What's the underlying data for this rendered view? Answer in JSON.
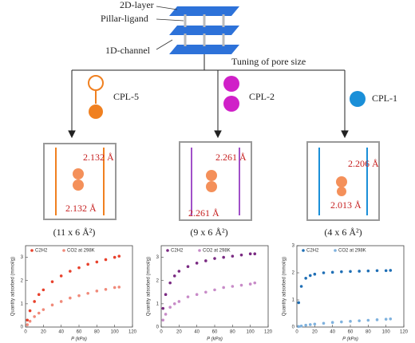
{
  "schematic": {
    "layer_label": "2D-layer",
    "pillar_label": "Pillar-ligand",
    "channel_label": "1D-channel",
    "tuning_label": "Tuning of pore size"
  },
  "branches": [
    {
      "name": "CPL-5",
      "distances": [
        "2.132 Å",
        "2.132 Å"
      ],
      "pore_size": "(11 x 6 Å²)",
      "plot": {
        "type": "scatter",
        "x_label": "P (kPa)",
        "y_label": "Quantity adsorbed (mmol/g)",
        "xlim": [
          0,
          120
        ],
        "xticks": [
          0,
          20,
          40,
          60,
          80,
          100,
          120
        ],
        "ylim": [
          0,
          3.5
        ],
        "yticks": [
          0,
          1,
          2,
          3
        ],
        "x": [
          2,
          5,
          10,
          15,
          20,
          30,
          40,
          50,
          60,
          70,
          80,
          90,
          100,
          105
        ],
        "series": [
          {
            "name": "C2H2",
            "color": "#e8412c",
            "values": [
              0.3,
              0.7,
              1.1,
              1.4,
              1.6,
              1.95,
              2.2,
              2.4,
              2.55,
              2.7,
              2.8,
              2.9,
              3.0,
              3.05
            ]
          },
          {
            "name": "CO2 at 298K",
            "color": "#f08a7a",
            "values": [
              0.1,
              0.25,
              0.45,
              0.6,
              0.75,
              0.95,
              1.1,
              1.25,
              1.35,
              1.45,
              1.55,
              1.62,
              1.7,
              1.72
            ]
          }
        ]
      }
    },
    {
      "name": "CPL-2",
      "distances": [
        "2.261 Å",
        "2.261 Å"
      ],
      "pore_size": "(9 x 6 Å²)",
      "plot": {
        "type": "scatter",
        "x_label": "P (kPa)",
        "y_label": "Quantity adsorbed (mmol/g)",
        "xlim": [
          0,
          120
        ],
        "xticks": [
          0,
          20,
          40,
          60,
          80,
          100,
          120
        ],
        "ylim": [
          0,
          3.5
        ],
        "yticks": [
          0,
          1,
          2,
          3
        ],
        "x": [
          2,
          5,
          10,
          15,
          20,
          30,
          40,
          50,
          60,
          70,
          80,
          90,
          100,
          105
        ],
        "series": [
          {
            "name": "C2H2",
            "color": "#7a2a82",
            "values": [
              0.8,
              1.4,
              1.9,
              2.2,
              2.4,
              2.6,
              2.75,
              2.85,
              2.95,
              3.0,
              3.05,
              3.1,
              3.15,
              3.15
            ]
          },
          {
            "name": "CO2 at 298K",
            "color": "#c88bc8",
            "values": [
              0.3,
              0.55,
              0.85,
              1.0,
              1.1,
              1.3,
              1.4,
              1.5,
              1.6,
              1.7,
              1.75,
              1.8,
              1.85,
              1.9
            ]
          }
        ]
      }
    },
    {
      "name": "CPL-1",
      "distances": [
        "2.206 Å",
        "2.013 Å"
      ],
      "pore_size": "(4 x 6 Å²)",
      "plot": {
        "type": "scatter",
        "x_label": "P (kPa)",
        "y_label": "Quantity adsorbed (mmol/g)",
        "xlim": [
          0,
          120
        ],
        "xticks": [
          0,
          20,
          40,
          60,
          80,
          100,
          120
        ],
        "ylim": [
          0,
          3
        ],
        "yticks": [
          0,
          1,
          2,
          3
        ],
        "x": [
          2,
          5,
          10,
          15,
          20,
          30,
          40,
          50,
          60,
          70,
          80,
          90,
          100,
          105
        ],
        "series": [
          {
            "name": "C2H2",
            "color": "#1f6fb5",
            "values": [
              0.9,
              1.5,
              1.8,
              1.9,
              1.95,
              2.0,
              2.02,
              2.04,
              2.05,
              2.06,
              2.07,
              2.08,
              2.08,
              2.09
            ]
          },
          {
            "name": "CO2 at 298K",
            "color": "#7fb2de",
            "values": [
              0.02,
              0.04,
              0.07,
              0.09,
              0.11,
              0.14,
              0.17,
              0.19,
              0.21,
              0.23,
              0.25,
              0.27,
              0.29,
              0.3
            ]
          }
        ]
      }
    }
  ]
}
